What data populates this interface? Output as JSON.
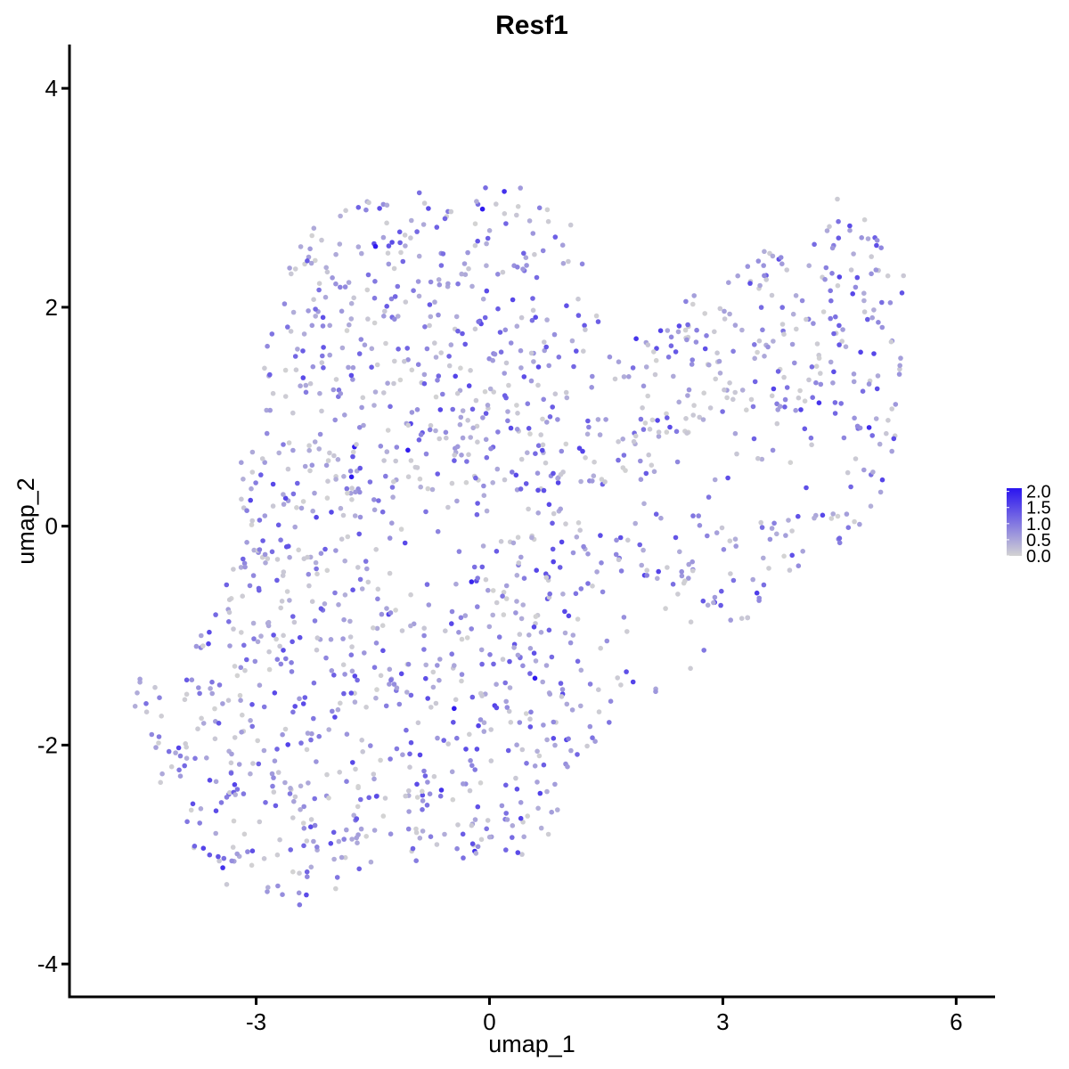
{
  "chart_data": {
    "type": "scatter",
    "title": "Resf1",
    "xlabel": "umap_1",
    "ylabel": "umap_2",
    "xlim": [
      -5.4,
      6.5
    ],
    "ylim": [
      -4.3,
      4.4
    ],
    "x_ticks": [
      -3,
      0,
      3,
      6
    ],
    "y_ticks": [
      -4,
      -2,
      0,
      2,
      4
    ],
    "grid": false,
    "legend": {
      "position": "right",
      "title": "",
      "labels": [
        "2.0",
        "1.5",
        "1.0",
        "0.5",
        "0.0"
      ],
      "values": [
        2.0,
        1.5,
        1.0,
        0.5,
        0.0
      ],
      "color_low": "#d3d3d3",
      "color_high": "#2a14f0",
      "range": [
        0.0,
        2.1
      ]
    },
    "point_color_low": "#d3d3d3",
    "point_color_high": "#2a14f0",
    "cluster_shape": [
      [
        -4.65,
        -1.25
      ],
      [
        -4.3,
        -1.45
      ],
      [
        -3.9,
        -1.25
      ],
      [
        -3.35,
        -0.45
      ],
      [
        -3.2,
        0.6
      ],
      [
        -2.9,
        1.6
      ],
      [
        -2.75,
        2.2
      ],
      [
        -2.2,
        2.85
      ],
      [
        -1.3,
        3.05
      ],
      [
        -0.4,
        3.1
      ],
      [
        0.25,
        3.15
      ],
      [
        1.0,
        2.9
      ],
      [
        1.3,
        2.2
      ],
      [
        1.5,
        1.6
      ],
      [
        2.1,
        1.85
      ],
      [
        3.0,
        2.3
      ],
      [
        3.6,
        2.55
      ],
      [
        4.1,
        2.5
      ],
      [
        4.5,
        3.05
      ],
      [
        4.9,
        2.75
      ],
      [
        5.35,
        2.3
      ],
      [
        5.3,
        1.5
      ],
      [
        5.25,
        0.95
      ],
      [
        5.1,
        0.35
      ],
      [
        4.7,
        -0.1
      ],
      [
        4.1,
        -0.3
      ],
      [
        3.5,
        -0.75
      ],
      [
        3.1,
        -1.1
      ],
      [
        2.4,
        -1.45
      ],
      [
        1.7,
        -1.65
      ],
      [
        1.0,
        -2.3
      ],
      [
        0.9,
        -2.75
      ],
      [
        0.5,
        -3.0
      ],
      [
        0.0,
        -3.05
      ],
      [
        -0.9,
        -3.1
      ],
      [
        -1.35,
        -3.0
      ],
      [
        -1.8,
        -3.2
      ],
      [
        -2.15,
        -3.45
      ],
      [
        -2.4,
        -3.55
      ],
      [
        -2.7,
        -3.4
      ],
      [
        -3.3,
        -3.35
      ],
      [
        -3.8,
        -3.05
      ],
      [
        -4.2,
        -2.6
      ],
      [
        -4.45,
        -2.1
      ],
      [
        -4.55,
        -1.7
      ]
    ],
    "cluster_holes": [
      [
        -0.9,
        -0.25,
        0.5,
        0.6,
        0.2
      ],
      [
        3.4,
        0.5,
        1.2,
        0.5,
        0.25
      ],
      [
        2.2,
        -1.0,
        0.9,
        0.45,
        0.5
      ],
      [
        2.1,
        0.15,
        0.6,
        0.5,
        0.5
      ]
    ],
    "point_count": 1650,
    "expression_mean": 0.78,
    "grey_fraction": 0.3
  }
}
